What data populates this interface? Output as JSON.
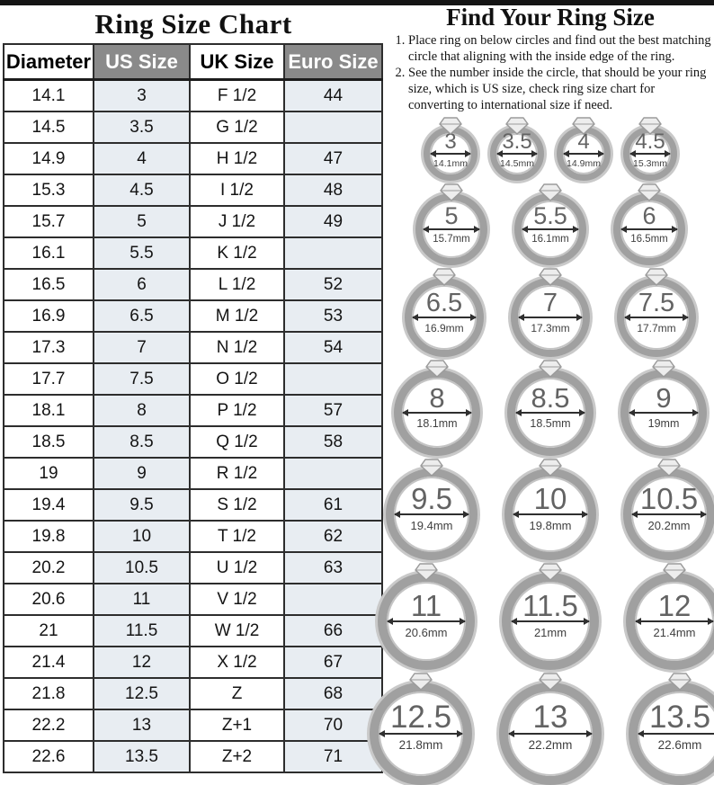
{
  "left": {
    "title": "Ring Size Chart",
    "table": {
      "headers": [
        "Diameter",
        "US Size",
        "UK Size",
        "Euro Size"
      ],
      "rows": [
        [
          "14.1",
          "3",
          "F 1/2",
          "44"
        ],
        [
          "14.5",
          "3.5",
          "G 1/2",
          ""
        ],
        [
          "14.9",
          "4",
          "H 1/2",
          "47"
        ],
        [
          "15.3",
          "4.5",
          "I 1/2",
          "48"
        ],
        [
          "15.7",
          "5",
          "J 1/2",
          "49"
        ],
        [
          "16.1",
          "5.5",
          "K 1/2",
          ""
        ],
        [
          "16.5",
          "6",
          "L 1/2",
          "52"
        ],
        [
          "16.9",
          "6.5",
          "M 1/2",
          "53"
        ],
        [
          "17.3",
          "7",
          "N 1/2",
          "54"
        ],
        [
          "17.7",
          "7.5",
          "O 1/2",
          ""
        ],
        [
          "18.1",
          "8",
          "P 1/2",
          "57"
        ],
        [
          "18.5",
          "8.5",
          "Q 1/2",
          "58"
        ],
        [
          "19",
          "9",
          "R 1/2",
          ""
        ],
        [
          "19.4",
          "9.5",
          "S 1/2",
          "61"
        ],
        [
          "19.8",
          "10",
          "T 1/2",
          "62"
        ],
        [
          "20.2",
          "10.5",
          "U 1/2",
          "63"
        ],
        [
          "20.6",
          "11",
          "V 1/2",
          ""
        ],
        [
          "21",
          "11.5",
          "W 1/2",
          "66"
        ],
        [
          "21.4",
          "12",
          "X 1/2",
          "67"
        ],
        [
          "21.8",
          "12.5",
          "Z",
          "68"
        ],
        [
          "22.2",
          "13",
          "Z+1",
          "70"
        ],
        [
          "22.6",
          "13.5",
          "Z+2",
          "71"
        ]
      ]
    }
  },
  "right": {
    "title": "Find Your Ring Size",
    "instructions": [
      "Place ring on below circles and find out the best matching circle that aligning with the inside edge of the ring.",
      "See the number inside the circle, that should be your ring size, which is US size, check ring size chart for converting to international size if need."
    ],
    "ring_rows": [
      [
        {
          "size": "3",
          "mm": "14.1mm"
        },
        {
          "size": "3.5",
          "mm": "14.5mm"
        },
        {
          "size": "4",
          "mm": "14.9mm"
        },
        {
          "size": "4.5",
          "mm": "15.3mm"
        }
      ],
      [
        {
          "size": "5",
          "mm": "15.7mm"
        },
        {
          "size": "5.5",
          "mm": "16.1mm"
        },
        {
          "size": "6",
          "mm": "16.5mm"
        }
      ],
      [
        {
          "size": "6.5",
          "mm": "16.9mm"
        },
        {
          "size": "7",
          "mm": "17.3mm"
        },
        {
          "size": "7.5",
          "mm": "17.7mm"
        }
      ],
      [
        {
          "size": "8",
          "mm": "18.1mm"
        },
        {
          "size": "8.5",
          "mm": "18.5mm"
        },
        {
          "size": "9",
          "mm": "19mm"
        }
      ],
      [
        {
          "size": "9.5",
          "mm": "19.4mm"
        },
        {
          "size": "10",
          "mm": "19.8mm"
        },
        {
          "size": "10.5",
          "mm": "20.2mm"
        }
      ],
      [
        {
          "size": "11",
          "mm": "20.6mm"
        },
        {
          "size": "11.5",
          "mm": "21mm"
        },
        {
          "size": "12",
          "mm": "21.4mm"
        }
      ],
      [
        {
          "size": "12.5",
          "mm": "21.8mm"
        },
        {
          "size": "13",
          "mm": "22.2mm"
        },
        {
          "size": "13.5",
          "mm": "22.6mm"
        }
      ]
    ]
  },
  "colors": {
    "header_gray": "#8a8a8a",
    "shaded_cell": "#e8edf2",
    "ring_gray": "#a0a0a0",
    "ring_halo_gray": "#c9c9c9",
    "number_gray": "#636363",
    "top_strip_black": "#141414"
  }
}
